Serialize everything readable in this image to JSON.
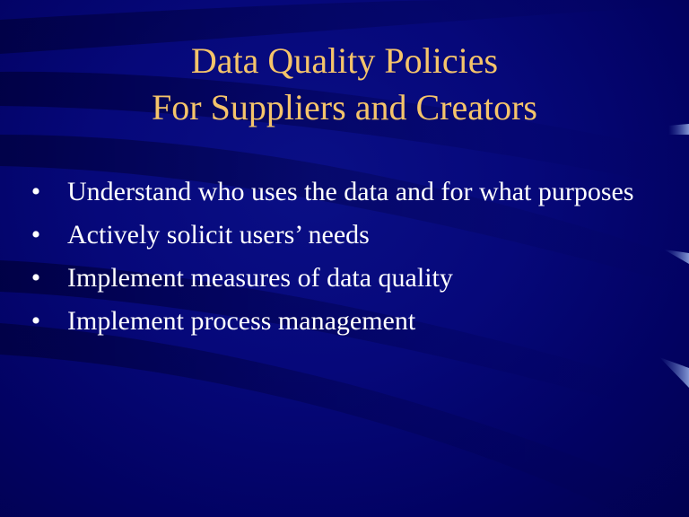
{
  "slide": {
    "title_lines": [
      "Data Quality Policies",
      "For Suppliers and Creators"
    ],
    "bullets": [
      "Understand who uses the data and for what purposes",
      "Actively solicit users’ needs",
      "Implement measures of data quality",
      "Implement process management"
    ],
    "bullet_glyph": "•"
  },
  "colors": {
    "background": "#06087a",
    "title": "#f5c46a",
    "body_text": "#ffffff",
    "accent_swoosh": "#6e86c8"
  }
}
